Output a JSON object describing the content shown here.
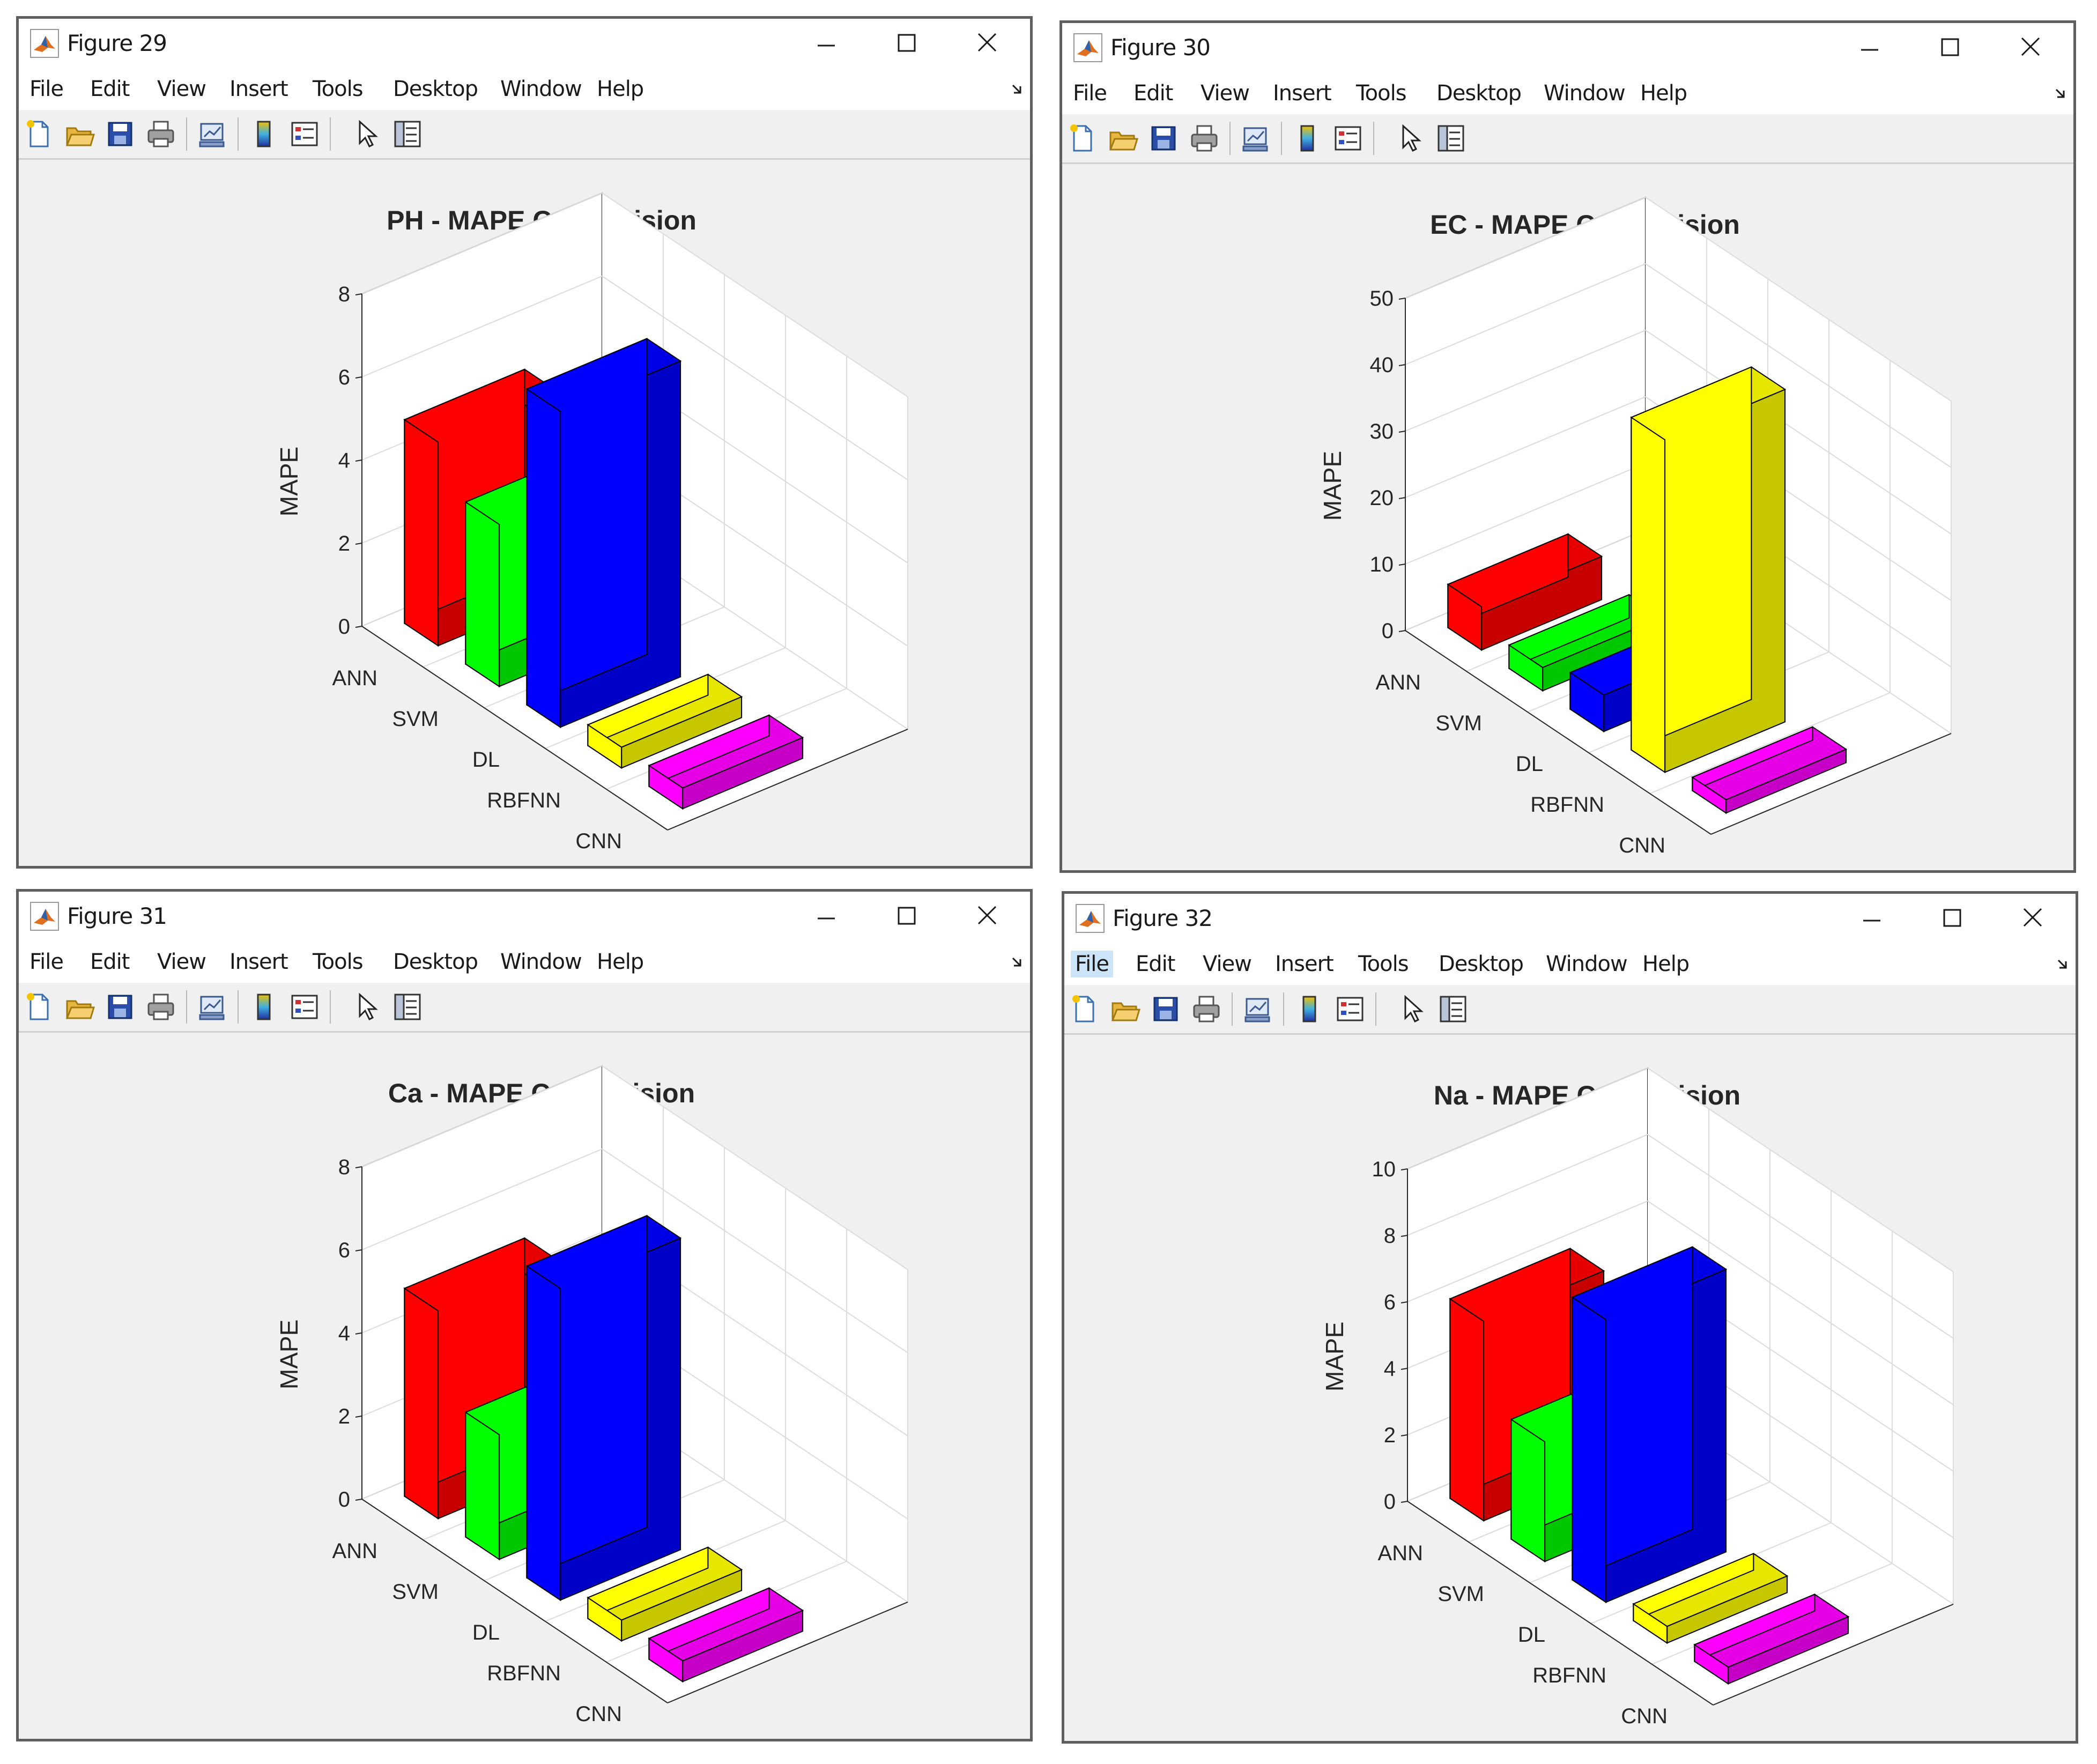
{
  "windows": [
    {
      "title": "Figure 29",
      "menu": [
        "File",
        "Edit",
        "View",
        "Insert",
        "Tools",
        "Desktop",
        "Window",
        "Help"
      ],
      "active_menu": "",
      "chart_data": {
        "type": "bar3d",
        "title": "PH - MAPE Comparision",
        "ylabel": "MAPE",
        "categories": [
          "ANN",
          "SVM",
          "DL",
          "RBFNN",
          "CNN"
        ],
        "values": [
          4.9,
          3.9,
          7.6,
          0.5,
          0.5
        ],
        "colors": [
          "#ff0000",
          "#00ff00",
          "#0000ff",
          "#ffff00",
          "#ff00ff"
        ],
        "ylim": [
          0,
          8
        ],
        "yticks": [
          0,
          2,
          4,
          6,
          8
        ]
      }
    },
    {
      "title": "Figure 30",
      "menu": [
        "File",
        "Edit",
        "View",
        "Insert",
        "Tools",
        "Desktop",
        "Window",
        "Help"
      ],
      "active_menu": "",
      "chart_data": {
        "type": "bar3d",
        "title": "EC - MAPE Comparision",
        "ylabel": "MAPE",
        "categories": [
          "ANN",
          "SVM",
          "DL",
          "RBFNN",
          "CNN"
        ],
        "values": [
          6.5,
          3.5,
          5.5,
          50,
          2
        ],
        "colors": [
          "#ff0000",
          "#00ff00",
          "#0000ff",
          "#ffff00",
          "#ff00ff"
        ],
        "ylim": [
          0,
          50
        ],
        "yticks": [
          0,
          10,
          20,
          30,
          40,
          50
        ]
      }
    },
    {
      "title": "Figure 31",
      "menu": [
        "File",
        "Edit",
        "View",
        "Insert",
        "Tools",
        "Desktop",
        "Window",
        "Help"
      ],
      "active_menu": "",
      "chart_data": {
        "type": "bar3d",
        "title": "Ca - MAPE Comparision",
        "ylabel": "MAPE",
        "categories": [
          "ANN",
          "SVM",
          "DL",
          "RBFNN",
          "CNN"
        ],
        "values": [
          5.0,
          3.0,
          7.5,
          0.5,
          0.5
        ],
        "colors": [
          "#ff0000",
          "#00ff00",
          "#0000ff",
          "#ffff00",
          "#ff00ff"
        ],
        "ylim": [
          0,
          8
        ],
        "yticks": [
          0,
          2,
          4,
          6,
          8
        ]
      }
    },
    {
      "title": "Figure 32",
      "menu": [
        "File",
        "Edit",
        "View",
        "Insert",
        "Tools",
        "Desktop",
        "Window",
        "Help"
      ],
      "active_menu": "File",
      "chart_data": {
        "type": "bar3d",
        "title": "Na - MAPE Comparision",
        "ylabel": "MAPE",
        "categories": [
          "ANN",
          "SVM",
          "DL",
          "RBFNN",
          "CNN"
        ],
        "values": [
          6.0,
          3.6,
          8.5,
          0.5,
          0.5
        ],
        "colors": [
          "#ff0000",
          "#00ff00",
          "#0000ff",
          "#ffff00",
          "#ff00ff"
        ],
        "ylim": [
          0,
          10
        ],
        "yticks": [
          0,
          2,
          4,
          6,
          8,
          10
        ]
      }
    }
  ],
  "icons": {
    "app": "matlab-icon",
    "minimize": "minimize-icon",
    "maximize": "maximize-icon",
    "close": "close-icon",
    "toolbar": [
      "new-figure-icon",
      "open-file-icon",
      "save-icon",
      "print-icon",
      "link-plot-icon",
      "colorbar-icon",
      "legend-icon",
      "edit-plot-icon",
      "property-inspector-icon"
    ]
  }
}
